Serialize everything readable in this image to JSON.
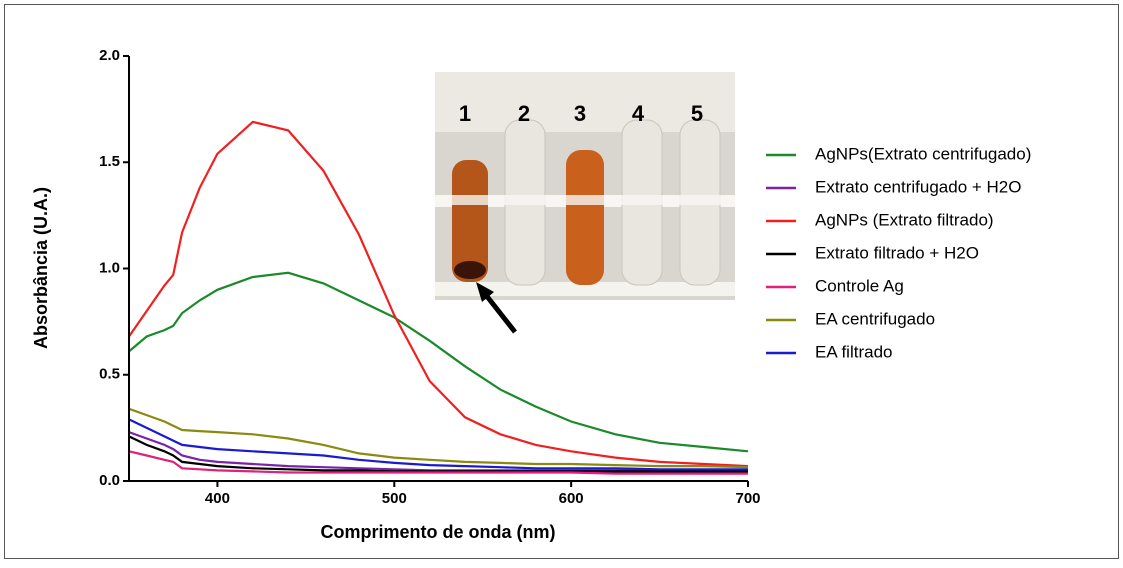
{
  "chart_data": {
    "type": "line",
    "xlabel": "Comprimento de onda (nm)",
    "ylabel": "Absorbância (U.A.)",
    "annotations": [
      "1",
      "2",
      "3",
      "4",
      "5"
    ],
    "x": [
      350,
      360,
      370,
      375,
      380,
      390,
      400,
      420,
      440,
      460,
      480,
      500,
      520,
      540,
      560,
      580,
      600,
      625,
      650,
      675,
      700
    ],
    "series": [
      {
        "name": "AgNPs(Extrato centrifugado)",
        "color": "#1a8a2a",
        "values": [
          0.61,
          0.68,
          0.71,
          0.73,
          0.79,
          0.85,
          0.9,
          0.96,
          0.98,
          0.93,
          0.85,
          0.77,
          0.66,
          0.54,
          0.43,
          0.35,
          0.28,
          0.22,
          0.18,
          0.16,
          0.14
        ]
      },
      {
        "name": "Extrato centrifugado + H2O",
        "color": "#7a22a8",
        "values": [
          0.23,
          0.2,
          0.17,
          0.15,
          0.12,
          0.1,
          0.09,
          0.08,
          0.07,
          0.065,
          0.06,
          0.055,
          0.05,
          0.05,
          0.05,
          0.05,
          0.05,
          0.05,
          0.05,
          0.05,
          0.05
        ]
      },
      {
        "name": "AgNPs (Extrato filtrado)",
        "color": "#f02020",
        "values": [
          0.68,
          0.8,
          0.92,
          0.97,
          1.17,
          1.38,
          1.54,
          1.69,
          1.65,
          1.46,
          1.16,
          0.78,
          0.47,
          0.3,
          0.22,
          0.17,
          0.14,
          0.11,
          0.09,
          0.08,
          0.07
        ]
      },
      {
        "name": "Extrato filtrado + H2O",
        "color": "#000000",
        "values": [
          0.21,
          0.17,
          0.14,
          0.12,
          0.09,
          0.08,
          0.07,
          0.06,
          0.055,
          0.05,
          0.05,
          0.045,
          0.045,
          0.045,
          0.045,
          0.045,
          0.045,
          0.045,
          0.045,
          0.045,
          0.045
        ]
      },
      {
        "name": "Controle Ag",
        "color": "#e0207a",
        "values": [
          0.14,
          0.12,
          0.1,
          0.09,
          0.06,
          0.055,
          0.05,
          0.045,
          0.04,
          0.04,
          0.04,
          0.04,
          0.04,
          0.04,
          0.04,
          0.04,
          0.04,
          0.035,
          0.035,
          0.035,
          0.035
        ]
      },
      {
        "name": "EA centrifugado",
        "color": "#8a8a10",
        "values": [
          0.34,
          0.31,
          0.28,
          0.26,
          0.24,
          0.235,
          0.23,
          0.22,
          0.2,
          0.17,
          0.13,
          0.11,
          0.1,
          0.09,
          0.085,
          0.08,
          0.08,
          0.075,
          0.07,
          0.07,
          0.065
        ]
      },
      {
        "name": "EA filtrado",
        "color": "#1a1ad0",
        "values": [
          0.29,
          0.25,
          0.21,
          0.19,
          0.17,
          0.16,
          0.15,
          0.14,
          0.13,
          0.12,
          0.1,
          0.085,
          0.075,
          0.07,
          0.065,
          0.06,
          0.06,
          0.06,
          0.055,
          0.055,
          0.055
        ]
      }
    ],
    "xlim": [
      350,
      700
    ],
    "xticks": [
      400,
      500,
      600,
      700
    ],
    "ylim": [
      0,
      2
    ],
    "yticks": [
      {
        "value": 0,
        "label": "0.0"
      },
      {
        "value": 0.5,
        "label": "0.5"
      },
      {
        "value": 1,
        "label": "1.0"
      },
      {
        "value": 1.5,
        "label": "1.5"
      },
      {
        "value": 2,
        "label": "2.0"
      }
    ],
    "legend": "right"
  }
}
